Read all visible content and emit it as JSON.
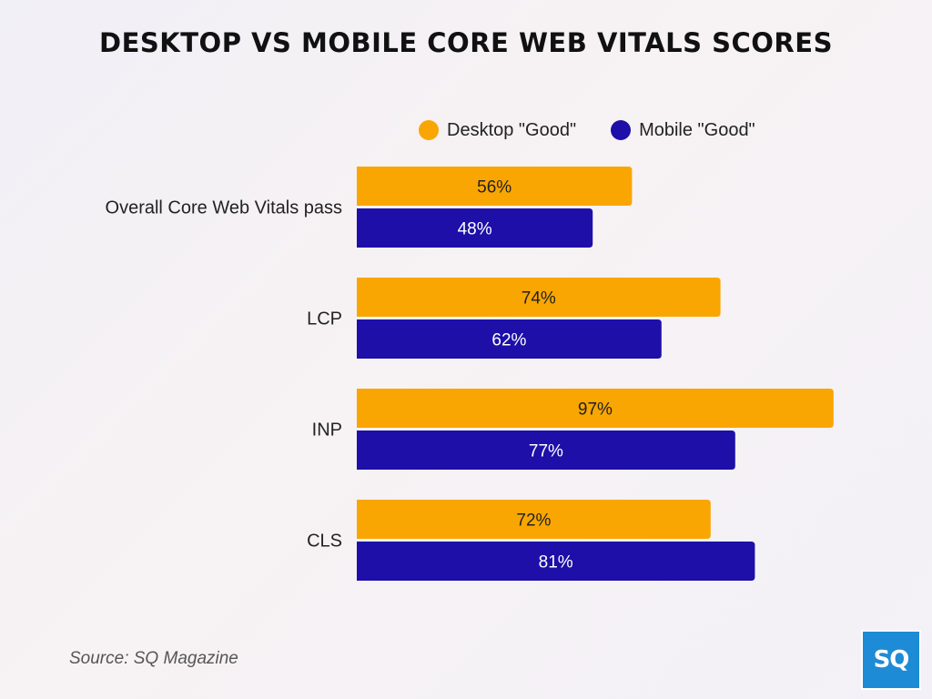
{
  "chart_data": {
    "type": "bar",
    "orientation": "horizontal",
    "title": "DESKTOP VS MOBILE CORE WEB VITALS SCORES",
    "categories": [
      "Overall Core Web Vitals pass",
      "LCP",
      "INP",
      "CLS"
    ],
    "series": [
      {
        "name": "Desktop \"Good\"",
        "color": "#f9a602",
        "values": [
          56,
          74,
          97,
          72
        ],
        "labels": [
          "56%",
          "74%",
          "97%",
          "72%"
        ]
      },
      {
        "name": "Mobile \"Good\"",
        "color": "#1d0fa8",
        "values": [
          48,
          62,
          77,
          81
        ],
        "labels": [
          "48%",
          "62%",
          "77%",
          "81%"
        ]
      }
    ],
    "unit": "%",
    "xlim": [
      0,
      100
    ],
    "grid": false,
    "legend_position": "top-right"
  },
  "source": "Source: SQ Magazine",
  "logo": "SQ"
}
